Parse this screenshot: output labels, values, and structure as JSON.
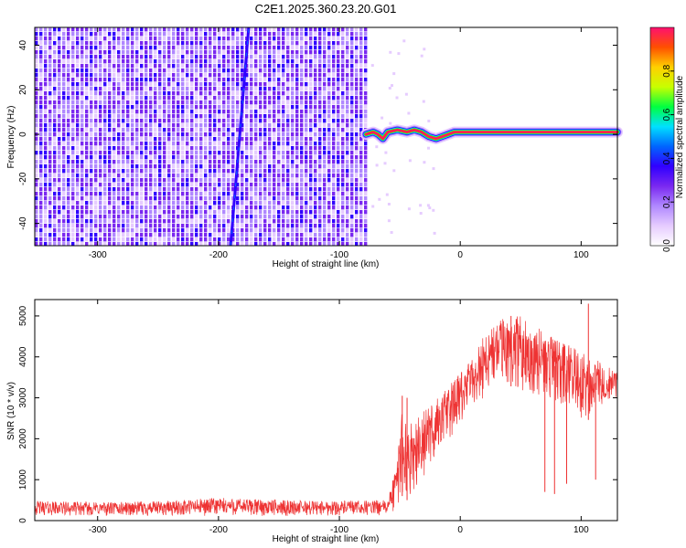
{
  "figure_title": "C2E1.2025.360.23.20.G01",
  "colors": {
    "snr_line": "#ee3333",
    "axis": "#000000",
    "colormap": [
      "#ffffff",
      "#e6ccff",
      "#b088ff",
      "#7a28f0",
      "#3000ff",
      "#0066ff",
      "#00e0ff",
      "#00ff40",
      "#c8ff00",
      "#ffd000",
      "#ff5000",
      "#ff1070"
    ]
  },
  "chart_data": [
    {
      "type": "heatmap",
      "title": "C2E1.2025.360.23.20.G01",
      "xlabel": "Height of straight line (km)",
      "ylabel": "Frequency (Hz)",
      "xlim": [
        -352,
        130
      ],
      "ylim": [
        -50,
        48
      ],
      "x_ticks": [
        -300,
        -200,
        -100,
        0,
        100
      ],
      "x_tick_labels": [
        "-300",
        "-200",
        "-100",
        "0",
        "100"
      ],
      "y_ticks": [
        -40,
        -20,
        0,
        20,
        40
      ],
      "y_tick_labels": [
        "-40",
        "-20",
        "0",
        "20",
        "40"
      ],
      "noise_region_x": [
        -352,
        -78
      ],
      "signal_start_x": -78,
      "carrier_trace": {
        "x": [
          -78,
          -72,
          -68,
          -64,
          -60,
          -52,
          -44,
          -38,
          -32,
          -26,
          -20,
          -15,
          -10,
          -5,
          0,
          20,
          60,
          100,
          130
        ],
        "y": [
          0,
          1,
          0,
          -2,
          1,
          2,
          1,
          2,
          1,
          -1,
          -2,
          -1,
          0,
          1,
          1,
          1,
          1,
          1,
          1
        ],
        "amplitude": 0.9
      },
      "drift_line": {
        "x": [
          -190,
          -175
        ],
        "y": [
          -50,
          48
        ]
      },
      "colorbar": {
        "label": "Normalized spectral amplitude",
        "range": [
          0,
          1
        ],
        "ticks": [
          0.0,
          0.2,
          0.4,
          0.6,
          0.8
        ],
        "tick_labels": [
          "0.0",
          "0.2",
          "0.4",
          "0.6",
          "0.8"
        ]
      },
      "grid": false
    },
    {
      "type": "line",
      "series": [
        {
          "name": "SNR",
          "color": "#ee3333"
        }
      ],
      "xlabel": "Height of straight line (km)",
      "ylabel": "SNR (10 * v/v)",
      "xlim": [
        -352,
        130
      ],
      "ylim": [
        0,
        5400
      ],
      "x_ticks": [
        -300,
        -200,
        -100,
        0,
        100
      ],
      "x_tick_labels": [
        "-300",
        "-200",
        "-100",
        "0",
        "100"
      ],
      "y_ticks": [
        0,
        1000,
        2000,
        3000,
        4000,
        5000
      ],
      "y_tick_labels": [
        "0",
        "1000",
        "2000",
        "3000",
        "4000",
        "5000"
      ],
      "envelope": {
        "x": [
          -352,
          -300,
          -250,
          -200,
          -150,
          -100,
          -60,
          -52,
          -48,
          -44,
          -40,
          -30,
          -20,
          -10,
          0,
          10,
          20,
          30,
          40,
          50,
          60,
          70,
          80,
          90,
          100,
          110,
          120,
          130
        ],
        "low": [
          120,
          110,
          100,
          110,
          110,
          120,
          130,
          250,
          600,
          500,
          700,
          1000,
          1500,
          1900,
          2300,
          2700,
          3000,
          3200,
          3300,
          3200,
          3100,
          3000,
          2800,
          2600,
          2400,
          2500,
          2900,
          3000
        ],
        "high": [
          480,
          450,
          470,
          560,
          500,
          480,
          500,
          1500,
          3000,
          2200,
          2400,
          2700,
          3000,
          3300,
          3600,
          4000,
          4600,
          4900,
          5000,
          5000,
          4800,
          4600,
          4400,
          4300,
          4200,
          4000,
          3800,
          3600
        ]
      },
      "spikes": [
        {
          "x": -48,
          "y": 3050
        },
        {
          "x": -44,
          "y": 3000
        },
        {
          "x": 42,
          "y": 5000
        },
        {
          "x": 106,
          "y": 5300
        }
      ],
      "dropouts": [
        {
          "x": 70,
          "y": 700
        },
        {
          "x": 78,
          "y": 650
        },
        {
          "x": 88,
          "y": 900
        },
        {
          "x": 112,
          "y": 1000
        }
      ],
      "grid": false
    }
  ]
}
